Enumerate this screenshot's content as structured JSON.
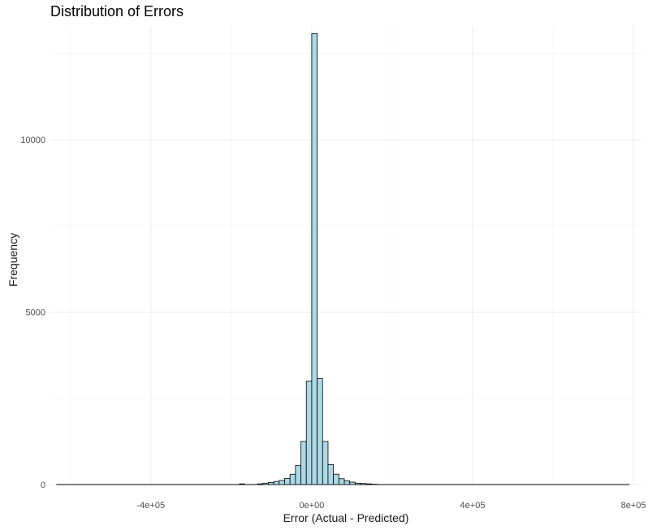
{
  "chart_data": {
    "type": "bar",
    "title": "Distribution of Errors",
    "xlabel": "Error (Actual - Predicted)",
    "ylabel": "Frequency",
    "xlim": [
      -650000,
      820000
    ],
    "ylim": [
      0,
      13300
    ],
    "x_ticks": [
      {
        "value": -400000,
        "label": "-4e+05"
      },
      {
        "value": 0,
        "label": "0e+00"
      },
      {
        "value": 400000,
        "label": "4e+05"
      },
      {
        "value": 800000,
        "label": "8e+05"
      }
    ],
    "y_ticks": [
      {
        "value": 0,
        "label": "0"
      },
      {
        "value": 5000,
        "label": "5000"
      },
      {
        "value": 10000,
        "label": "10000"
      }
    ],
    "bin_width": 13500,
    "baseline_range": [
      -635000,
      790000
    ],
    "bins": [
      {
        "start": -180000,
        "count": 20
      },
      {
        "start": -135000,
        "count": 20
      },
      {
        "start": -121500,
        "count": 40
      },
      {
        "start": -108000,
        "count": 60
      },
      {
        "start": -94500,
        "count": 90
      },
      {
        "start": -81000,
        "count": 120
      },
      {
        "start": -67500,
        "count": 180
      },
      {
        "start": -54000,
        "count": 300
      },
      {
        "start": -40500,
        "count": 550
      },
      {
        "start": -27000,
        "count": 1250
      },
      {
        "start": -13500,
        "count": 3000
      },
      {
        "start": 0,
        "count": 13080
      },
      {
        "start": 13500,
        "count": 3070
      },
      {
        "start": 27000,
        "count": 1250
      },
      {
        "start": 40500,
        "count": 580
      },
      {
        "start": 54000,
        "count": 300
      },
      {
        "start": 67500,
        "count": 170
      },
      {
        "start": 81000,
        "count": 110
      },
      {
        "start": 94500,
        "count": 70
      },
      {
        "start": 108000,
        "count": 40
      },
      {
        "start": 121500,
        "count": 30
      },
      {
        "start": 135000,
        "count": 20
      },
      {
        "start": 148500,
        "count": 10
      }
    ],
    "colors": {
      "fill": "#add8e6",
      "stroke": "#000000",
      "grid_major": "#ebebeb",
      "grid_minor": "#f3f3f3"
    },
    "grid": true,
    "legend": "none"
  }
}
